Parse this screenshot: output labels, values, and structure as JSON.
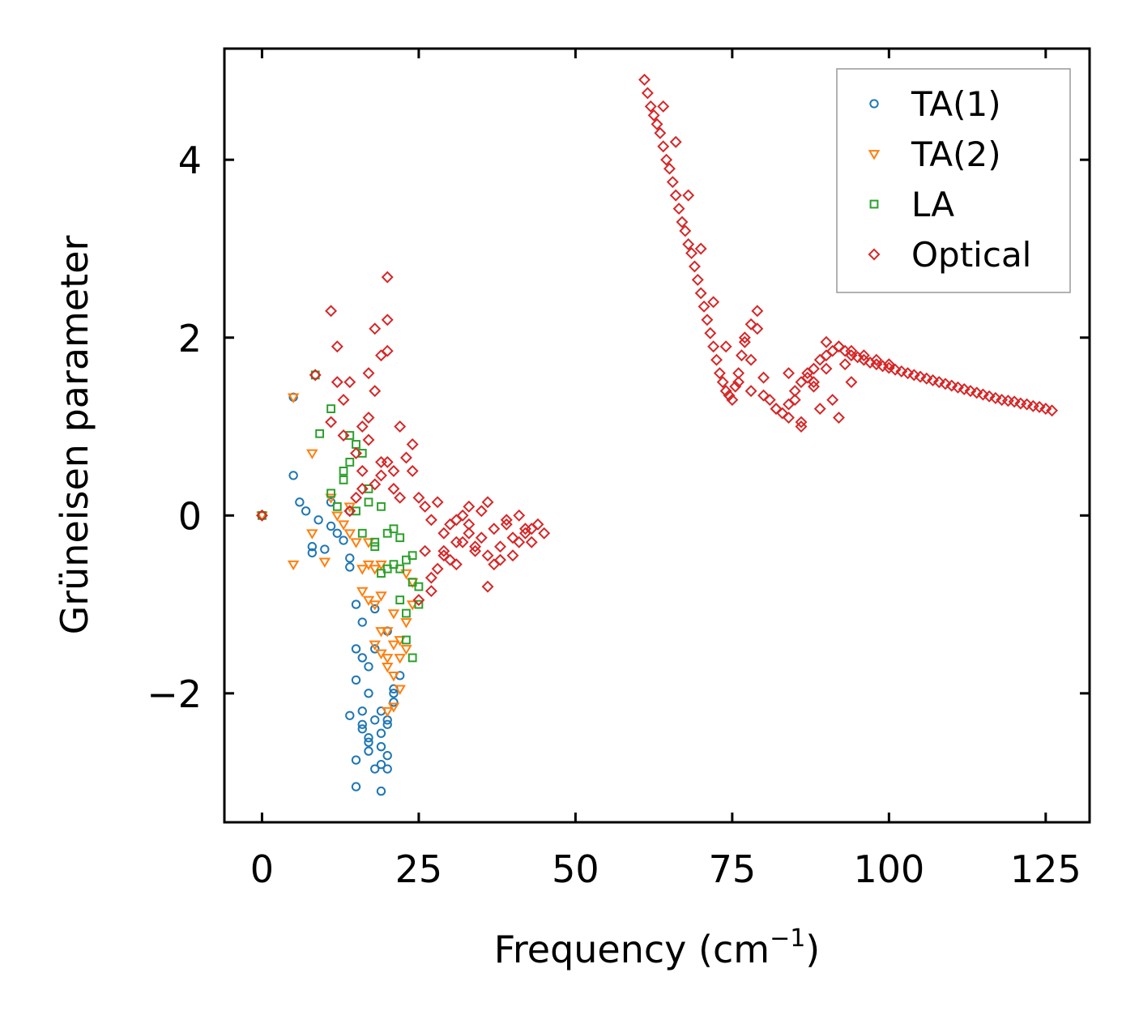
{
  "chart_data": {
    "type": "scatter",
    "title": "",
    "xlabel_main": "Frequency (cm",
    "xlabel_sup": "−1",
    "xlabel_end": ")",
    "ylabel": "Grüneisen parameter",
    "xlim": [
      -6,
      132
    ],
    "ylim": [
      -3.45,
      5.25
    ],
    "x_ticks": [
      0,
      25,
      50,
      75,
      100,
      125
    ],
    "x_tick_labels": [
      "0",
      "25",
      "50",
      "75",
      "100",
      "125"
    ],
    "y_ticks": [
      -2,
      0,
      2,
      4
    ],
    "y_tick_labels": [
      "−2",
      "0",
      "2",
      "4"
    ],
    "legend_position": "top-right",
    "series": [
      {
        "name": "TA(1)",
        "marker": "circle",
        "color": "#1f77b4",
        "x": [
          0,
          5,
          5,
          6,
          7,
          8,
          8,
          9,
          10,
          11,
          11,
          12,
          13,
          14,
          14,
          14,
          15,
          15,
          15,
          16,
          16,
          16,
          17,
          17,
          17,
          18,
          18,
          18,
          19,
          19,
          19,
          20,
          20,
          20,
          21,
          21,
          22,
          15,
          17,
          16,
          14,
          18,
          19,
          20,
          21,
          15,
          16,
          17,
          19,
          20
        ],
        "y": [
          0,
          0.45,
          1.33,
          0.15,
          0.05,
          -0.35,
          -0.42,
          -0.05,
          -0.38,
          0.15,
          -0.12,
          -0.2,
          -0.28,
          -0.48,
          -0.58,
          0.05,
          -1.0,
          -1.5,
          -1.85,
          -1.2,
          -1.6,
          -2.2,
          -1.7,
          -2.0,
          -2.5,
          -1.05,
          -1.5,
          -2.3,
          -2.6,
          -2.2,
          -3.1,
          -2.7,
          -2.85,
          -2.35,
          -2.1,
          -1.95,
          -1.8,
          -2.75,
          -2.65,
          -2.4,
          -2.25,
          -2.85,
          -2.45,
          -2.3,
          -2.0,
          -3.05,
          -2.35,
          -2.55,
          -2.8,
          -1.3
        ]
      },
      {
        "name": "TA(2)",
        "marker": "triangle-down",
        "color": "#ff7f0e",
        "x": [
          0,
          5,
          5,
          8,
          8,
          10,
          11,
          12,
          13,
          14,
          14,
          15,
          16,
          16,
          17,
          17,
          18,
          18,
          18,
          19,
          19,
          19,
          20,
          20,
          20,
          21,
          21,
          21,
          22,
          22,
          22,
          23,
          23,
          24,
          24,
          17,
          19,
          21,
          23,
          20
        ],
        "y": [
          0,
          1.33,
          -0.55,
          0.7,
          -0.2,
          -0.52,
          0.2,
          0.0,
          -0.1,
          -0.2,
          0.1,
          -0.3,
          -0.6,
          -0.85,
          -0.55,
          -0.95,
          -0.6,
          -1.0,
          -1.45,
          -1.3,
          -1.55,
          -0.55,
          -1.6,
          -1.7,
          -1.3,
          -1.45,
          -2.15,
          -1.8,
          -1.6,
          -1.4,
          -1.95,
          -1.2,
          -1.5,
          -1.0,
          -0.75,
          -0.3,
          -0.9,
          -1.1,
          -0.65,
          -2.2
        ]
      },
      {
        "name": "LA",
        "marker": "square",
        "color": "#2ca02c",
        "x": [
          0,
          8.5,
          9.2,
          11,
          11,
          12,
          13,
          13,
          14,
          14,
          15,
          15,
          16,
          16,
          17,
          17,
          18,
          18,
          19,
          19,
          20,
          20,
          21,
          21,
          22,
          22,
          23,
          23,
          24,
          24,
          25,
          25,
          23,
          24,
          22
        ],
        "y": [
          0,
          1.58,
          0.92,
          1.2,
          0.25,
          0.1,
          0.5,
          0.4,
          0.9,
          0.6,
          0.8,
          0.05,
          0.7,
          -0.2,
          0.3,
          0.15,
          -0.3,
          -0.35,
          0.1,
          -0.65,
          -0.6,
          -0.2,
          -0.15,
          -0.55,
          -0.95,
          -0.25,
          -1.1,
          -0.5,
          -0.75,
          -0.45,
          -1.0,
          -0.8,
          -1.4,
          -1.6,
          -0.6
        ]
      },
      {
        "name": "Optical",
        "marker": "diamond",
        "color": "#d62728",
        "x": [
          0,
          8.5,
          11,
          11,
          12,
          12,
          13,
          13,
          14,
          15,
          15,
          16,
          16,
          17,
          17,
          18,
          18,
          19,
          19,
          20,
          20,
          20,
          21,
          14,
          16,
          17,
          18,
          19,
          20,
          21,
          22,
          22,
          23,
          24,
          24,
          25,
          26,
          27,
          28,
          29,
          30,
          31,
          32,
          33,
          34,
          35,
          36,
          37,
          38,
          39,
          40,
          41,
          42,
          43,
          44,
          45,
          26,
          28,
          30,
          32,
          34,
          36,
          38,
          40,
          42,
          27,
          29,
          31,
          33,
          35,
          37,
          39,
          41,
          43,
          25,
          27,
          29,
          31,
          33,
          36,
          61,
          61.5,
          62,
          62.5,
          63,
          63.5,
          64,
          64.5,
          65,
          65.5,
          66,
          66.5,
          67,
          67.5,
          68,
          68.5,
          69,
          69.5,
          70,
          70.5,
          71,
          71.5,
          72,
          72.5,
          73,
          73.5,
          74,
          74.5,
          75,
          75.5,
          76,
          76.5,
          77,
          78,
          79,
          80,
          81,
          82,
          83,
          84,
          85,
          86,
          87,
          88,
          89,
          90,
          91,
          92,
          93,
          94,
          95,
          96,
          97,
          98,
          99,
          100,
          101,
          102,
          103,
          104,
          105,
          106,
          107,
          108,
          109,
          110,
          111,
          112,
          113,
          114,
          115,
          116,
          117,
          118,
          119,
          120,
          121,
          122,
          123,
          124,
          125,
          126,
          64,
          66,
          68,
          70,
          72,
          74,
          76,
          78,
          80,
          82,
          84,
          86,
          88,
          90,
          92,
          94,
          96,
          98,
          100,
          79,
          78,
          77,
          84,
          85,
          86,
          87,
          88,
          89,
          90,
          91,
          92,
          93,
          94
        ],
        "y": [
          0,
          1.58,
          2.3,
          1.05,
          1.9,
          1.5,
          1.3,
          0.9,
          1.5,
          0.2,
          0.7,
          1.0,
          0.3,
          1.6,
          1.1,
          2.1,
          1.4,
          1.8,
          0.6,
          2.68,
          2.2,
          1.85,
          0.5,
          0.05,
          0.5,
          0.85,
          0.35,
          0.45,
          0.6,
          0.3,
          0.2,
          1.0,
          0.65,
          0.5,
          0.8,
          0.2,
          0.1,
          -0.05,
          0.15,
          -0.2,
          -0.1,
          -0.3,
          0.0,
          -0.2,
          -0.4,
          -0.25,
          -0.45,
          -0.15,
          -0.35,
          -0.1,
          -0.25,
          0.0,
          -0.15,
          -0.3,
          -0.1,
          -0.2,
          -0.4,
          -0.6,
          -0.5,
          -0.3,
          -0.35,
          -0.8,
          -0.5,
          -0.45,
          -0.2,
          -0.7,
          -0.45,
          -0.55,
          -0.1,
          0.05,
          -0.55,
          -0.05,
          -0.3,
          -0.15,
          -0.95,
          -0.85,
          -0.4,
          -0.05,
          0.1,
          0.15,
          4.9,
          4.75,
          4.6,
          4.5,
          4.4,
          4.3,
          4.15,
          4.0,
          3.9,
          3.75,
          3.6,
          3.45,
          3.3,
          3.2,
          3.05,
          2.95,
          2.8,
          2.65,
          2.5,
          2.35,
          2.2,
          2.05,
          1.9,
          1.75,
          1.6,
          1.5,
          1.4,
          1.35,
          1.3,
          1.45,
          1.6,
          1.8,
          2.0,
          2.15,
          2.3,
          1.55,
          1.3,
          1.2,
          1.15,
          1.25,
          1.4,
          1.5,
          1.55,
          1.65,
          1.75,
          1.8,
          1.85,
          1.9,
          1.85,
          1.8,
          1.78,
          1.75,
          1.72,
          1.7,
          1.68,
          1.66,
          1.64,
          1.62,
          1.6,
          1.58,
          1.56,
          1.54,
          1.52,
          1.5,
          1.48,
          1.46,
          1.44,
          1.42,
          1.4,
          1.38,
          1.36,
          1.34,
          1.32,
          1.3,
          1.29,
          1.28,
          1.26,
          1.25,
          1.23,
          1.22,
          1.2,
          1.18,
          4.6,
          4.2,
          3.6,
          3.0,
          2.4,
          1.9,
          1.5,
          1.4,
          1.35,
          1.2,
          1.1,
          1.05,
          1.5,
          1.95,
          1.9,
          1.85,
          1.8,
          1.75,
          1.7,
          2.1,
          1.75,
          1.95,
          1.6,
          1.3,
          1.0,
          1.6,
          1.45,
          1.2,
          1.65,
          1.3,
          1.1,
          1.7,
          1.5
        ]
      }
    ]
  }
}
